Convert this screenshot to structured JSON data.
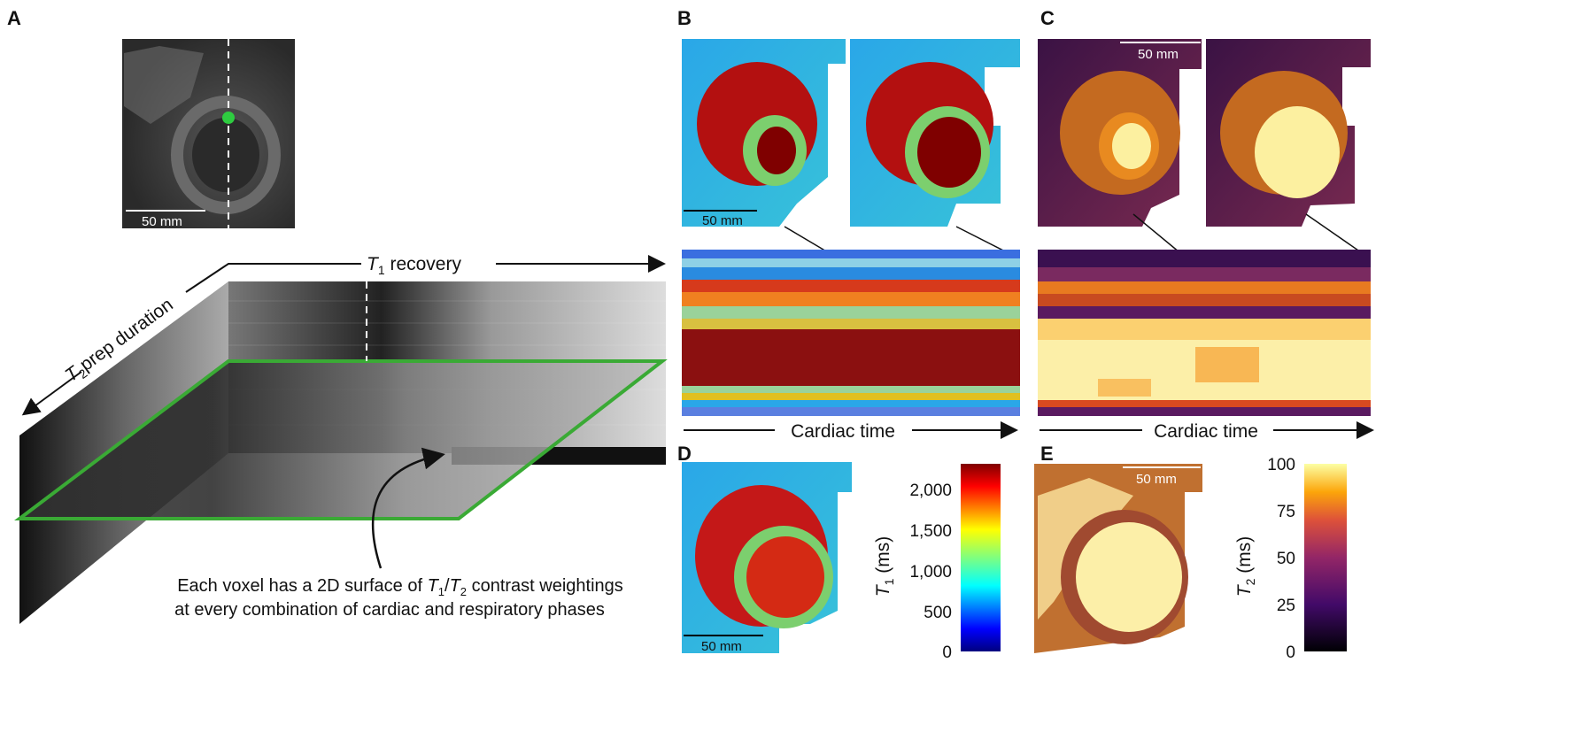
{
  "panels": {
    "a": "A",
    "b": "B",
    "c": "C",
    "d": "D",
    "e": "E"
  },
  "scale_bar": "50 mm",
  "panel_a": {
    "t1_axis_italic": "T",
    "t1_axis_sub": "1",
    "t1_axis_rest": " recovery",
    "t2_axis_italic": "T",
    "t2_axis_sub": "2",
    "t2_axis_rest": "prep duration",
    "caption_line1_a": "Each voxel has a 2D surface of ",
    "caption_line1_t1": "T",
    "caption_line1_t1sub": "1",
    "caption_line1_slash": "/",
    "caption_line1_t2": "T",
    "caption_line1_t2sub": "2",
    "caption_line1_b": " contrast weightings",
    "caption_line2": "at every combination of cardiac and respiratory phases"
  },
  "cardiac_time": "Cardiac time",
  "colorbar_t1": {
    "label_italic": "T",
    "label_sub": "1",
    "label_rest": " (ms)",
    "ticks": [
      "0",
      "500",
      "1,000",
      "1,500",
      "2,000"
    ],
    "colormap": "jet"
  },
  "colorbar_t2": {
    "label_italic": "T",
    "label_sub": "2",
    "label_rest": " (ms)",
    "ticks": [
      "0",
      "25",
      "50",
      "75",
      "100"
    ],
    "colormap": "inferno"
  },
  "colors": {
    "green_plane": "#3aaa35",
    "green_dot": "#2ecc40"
  }
}
